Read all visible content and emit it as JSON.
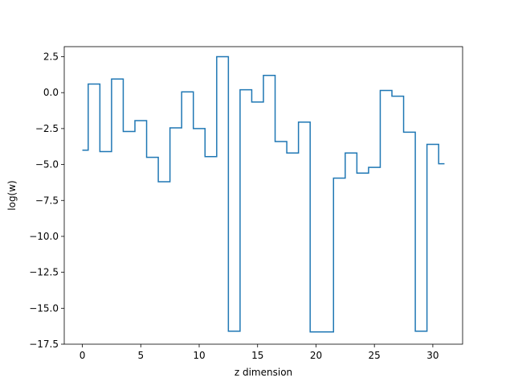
{
  "chart_data": {
    "type": "line",
    "drawstyle": "steps-mid",
    "xlabel": "z dimension",
    "ylabel": "log(w)",
    "xlim": [
      -1.55,
      32.55
    ],
    "ylim": [
      -17.5,
      3.2
    ],
    "xticks": [
      0,
      5,
      10,
      15,
      20,
      25,
      30
    ],
    "xtick_labels": [
      "0",
      "5",
      "10",
      "15",
      "20",
      "25",
      "30"
    ],
    "yticks": [
      2.5,
      0.0,
      -2.5,
      -5.0,
      -7.5,
      -10.0,
      -12.5,
      -15.0,
      -17.5
    ],
    "ytick_labels": [
      "2.5",
      "0.0",
      "−2.5",
      "−5.0",
      "−7.5",
      "−10.0",
      "−12.5",
      "−15.0",
      "−17.5"
    ],
    "grid": false,
    "series": [
      {
        "color": "#1f77b4",
        "x": [
          0,
          1,
          2,
          3,
          4,
          5,
          6,
          7,
          8,
          9,
          10,
          11,
          12,
          13,
          14,
          15,
          16,
          17,
          18,
          19,
          20,
          21,
          22,
          23,
          24,
          25,
          26,
          27,
          28,
          29,
          30,
          31
        ],
        "values": [
          -4.0,
          0.6,
          -4.1,
          0.95,
          -2.7,
          -1.95,
          -4.5,
          -6.2,
          -2.45,
          0.05,
          -2.5,
          -4.45,
          2.5,
          -16.6,
          0.2,
          -0.65,
          1.2,
          -3.4,
          -4.2,
          -2.05,
          -16.65,
          -16.65,
          -5.95,
          -4.2,
          -5.6,
          -5.2,
          0.15,
          -0.25,
          -2.75,
          -16.6,
          -3.6,
          -4.95
        ]
      }
    ]
  }
}
